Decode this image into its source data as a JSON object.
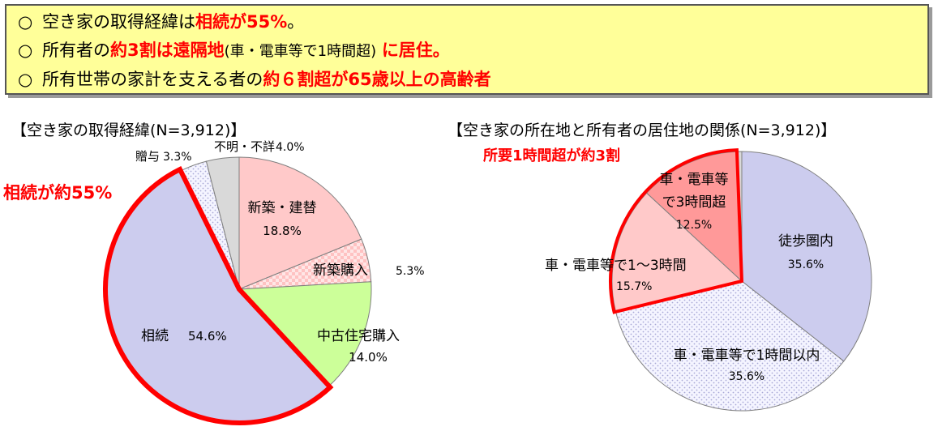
{
  "summary": {
    "marker": "○",
    "lines": [
      {
        "pre": "空き家の取得経緯は",
        "hl": "相続が55%",
        "post": "。"
      },
      {
        "pre": "所有者の",
        "hl": "約3割は遠隔地",
        "post": "(車・電車等で1時間超)",
        "hl2": "に居住。"
      },
      {
        "pre": "所有世帯の家計を支える者の",
        "hl": "約６割超が65歳以上の高齢者",
        "post": ""
      }
    ]
  },
  "colors": {
    "accent": "#ff0000",
    "banner": "#ffff99",
    "border": "#555555"
  },
  "chart_data": [
    {
      "type": "pie",
      "title": "【空き家の取得経緯(N=3,912)】",
      "unit": "%",
      "slices": [
        {
          "label": "新築・建替",
          "value": 18.8,
          "value_text": "18.8%",
          "color": "#ffc9c9"
        },
        {
          "label": "新築購入",
          "value": 5.3,
          "value_text": "5.3%",
          "color": "#ffe3e3",
          "pattern": "check"
        },
        {
          "label": "中古住宅購入",
          "value": 14.0,
          "value_text": "14.0%",
          "color": "#ccff99"
        },
        {
          "label": "相続",
          "value": 54.6,
          "value_text": "54.6%",
          "color": "#ccccee"
        },
        {
          "label": "贈与",
          "value": 3.3,
          "value_text": "3.3%",
          "color": "#eeeeff",
          "pattern": "dots"
        },
        {
          "label": "不明・不詳",
          "value": 4.0,
          "value_text": "4.0%",
          "color": "#d9d9d9"
        }
      ],
      "annotation": "相続が約55%",
      "highlight_slice": "相続"
    },
    {
      "type": "pie",
      "title": "【空き家の所在地と所有者の居住地の関係(N=3,912)】",
      "unit": "%",
      "slices": [
        {
          "label": "徒歩圏内",
          "value": 35.6,
          "value_text": "35.6%",
          "color": "#ccccee"
        },
        {
          "label": "車・電車等で1時間以内",
          "value": 35.6,
          "value_text": "35.6%",
          "color": "#eeeeff",
          "pattern": "dots"
        },
        {
          "label": "車・電車等で1～3時間",
          "value": 15.7,
          "value_text": "15.7%",
          "color": "#ffc9c9"
        },
        {
          "label": "車・電車等で3時間超",
          "label_lines": [
            "車・電車等",
            "で3時間超"
          ],
          "value": 12.5,
          "value_text": "12.5%",
          "color": "#ff9999"
        },
        {
          "label": "",
          "value": 0.6,
          "value_text": "",
          "color": "#d9d9d9"
        }
      ],
      "annotation": "所要1時間超が約3割",
      "highlight_slices": [
        "車・電車等で1～3時間",
        "車・電車等で3時間超"
      ]
    }
  ]
}
